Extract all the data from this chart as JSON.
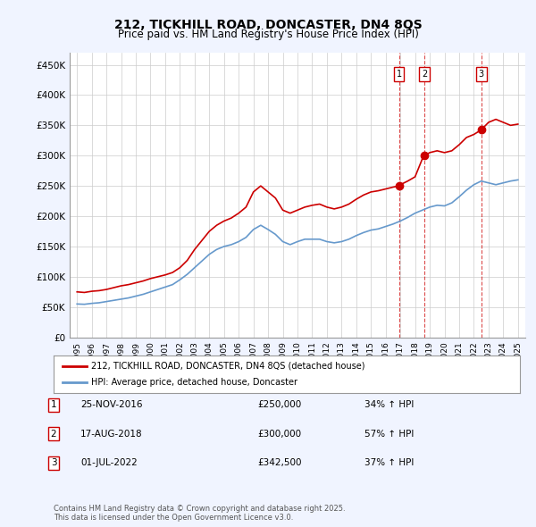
{
  "title": "212, TICKHILL ROAD, DONCASTER, DN4 8QS",
  "subtitle": "Price paid vs. HM Land Registry's House Price Index (HPI)",
  "ylabel": "",
  "background_color": "#f0f4ff",
  "plot_bg_color": "#ffffff",
  "red_color": "#cc0000",
  "blue_color": "#6699cc",
  "transactions": [
    {
      "num": 1,
      "date": "25-NOV-2016",
      "price": 250000,
      "pct": "34%",
      "arrow": "↑",
      "label": "HPI",
      "x_year": 2016.9
    },
    {
      "num": 2,
      "date": "17-AUG-2018",
      "price": 300000,
      "pct": "57%",
      "arrow": "↑",
      "label": "HPI",
      "x_year": 2018.625
    },
    {
      "num": 3,
      "date": "01-JUL-2022",
      "price": 342500,
      "pct": "37%",
      "arrow": "↑",
      "label": "HPI",
      "x_year": 2022.5
    }
  ],
  "red_line": {
    "years": [
      1995,
      1995.5,
      1996,
      1996.5,
      1997,
      1997.5,
      1998,
      1998.5,
      1999,
      1999.5,
      2000,
      2000.5,
      2001,
      2001.5,
      2002,
      2002.5,
      2003,
      2003.5,
      2004,
      2004.5,
      2005,
      2005.5,
      2006,
      2006.5,
      2007,
      2007.5,
      2008,
      2008.5,
      2009,
      2009.5,
      2010,
      2010.5,
      2011,
      2011.5,
      2012,
      2012.5,
      2013,
      2013.5,
      2014,
      2014.5,
      2015,
      2015.5,
      2016,
      2016.5,
      2016.9,
      2017,
      2017.5,
      2018,
      2018.5,
      2018.625,
      2019,
      2019.5,
      2020,
      2020.5,
      2021,
      2021.5,
      2022,
      2022.5,
      2022.5,
      2023,
      2023.5,
      2024,
      2024.5,
      2025
    ],
    "values": [
      75000,
      74000,
      76000,
      77000,
      79000,
      82000,
      85000,
      87000,
      90000,
      93000,
      97000,
      100000,
      103000,
      107000,
      115000,
      127000,
      145000,
      160000,
      175000,
      185000,
      192000,
      197000,
      205000,
      215000,
      240000,
      250000,
      240000,
      230000,
      210000,
      205000,
      210000,
      215000,
      218000,
      220000,
      215000,
      212000,
      215000,
      220000,
      228000,
      235000,
      240000,
      242000,
      245000,
      248000,
      250000,
      252000,
      258000,
      265000,
      295000,
      300000,
      305000,
      308000,
      305000,
      308000,
      318000,
      330000,
      335000,
      342500,
      342500,
      355000,
      360000,
      355000,
      350000,
      352000
    ]
  },
  "blue_line": {
    "years": [
      1995,
      1995.5,
      1996,
      1996.5,
      1997,
      1997.5,
      1998,
      1998.5,
      1999,
      1999.5,
      2000,
      2000.5,
      2001,
      2001.5,
      2002,
      2002.5,
      2003,
      2003.5,
      2004,
      2004.5,
      2005,
      2005.5,
      2006,
      2006.5,
      2007,
      2007.5,
      2008,
      2008.5,
      2009,
      2009.5,
      2010,
      2010.5,
      2011,
      2011.5,
      2012,
      2012.5,
      2013,
      2013.5,
      2014,
      2014.5,
      2015,
      2015.5,
      2016,
      2016.5,
      2017,
      2017.5,
      2018,
      2018.5,
      2019,
      2019.5,
      2020,
      2020.5,
      2021,
      2021.5,
      2022,
      2022.5,
      2023,
      2023.5,
      2024,
      2024.5,
      2025
    ],
    "values": [
      55000,
      54500,
      56000,
      57000,
      59000,
      61000,
      63000,
      65000,
      68000,
      71000,
      75000,
      79000,
      83000,
      87000,
      95000,
      104000,
      115000,
      126000,
      137000,
      145000,
      150000,
      153000,
      158000,
      165000,
      178000,
      185000,
      178000,
      170000,
      158000,
      153000,
      158000,
      162000,
      162000,
      162000,
      158000,
      156000,
      158000,
      162000,
      168000,
      173000,
      177000,
      179000,
      183000,
      187000,
      192000,
      198000,
      205000,
      210000,
      215000,
      218000,
      217000,
      222000,
      232000,
      243000,
      252000,
      258000,
      255000,
      252000,
      255000,
      258000,
      260000
    ]
  },
  "ylim": [
    0,
    470000
  ],
  "xlim": [
    1994.5,
    2025.5
  ],
  "yticks": [
    0,
    50000,
    100000,
    150000,
    200000,
    250000,
    300000,
    350000,
    400000,
    450000
  ],
  "ytick_labels": [
    "£0",
    "£50K",
    "£100K",
    "£150K",
    "£200K",
    "£250K",
    "£300K",
    "£350K",
    "£400K",
    "£450K"
  ],
  "xticks": [
    1995,
    1996,
    1997,
    1998,
    1999,
    2000,
    2001,
    2002,
    2003,
    2004,
    2005,
    2006,
    2007,
    2008,
    2009,
    2010,
    2011,
    2012,
    2013,
    2014,
    2015,
    2016,
    2017,
    2018,
    2019,
    2020,
    2021,
    2022,
    2023,
    2024,
    2025
  ],
  "footer": "Contains HM Land Registry data © Crown copyright and database right 2025.\nThis data is licensed under the Open Government Licence v3.0.",
  "legend_label_red": "212, TICKHILL ROAD, DONCASTER, DN4 8QS (detached house)",
  "legend_label_blue": "HPI: Average price, detached house, Doncaster"
}
